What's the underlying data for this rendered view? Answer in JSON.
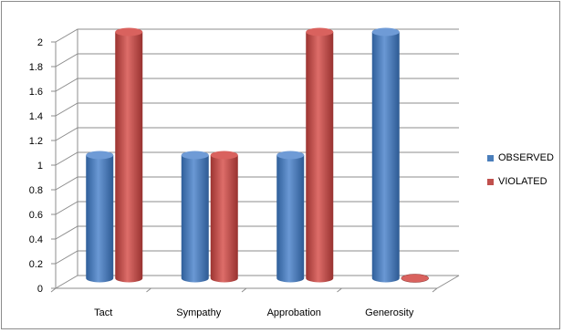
{
  "chart_data": {
    "type": "bar",
    "title": "",
    "xlabel": "",
    "ylabel": "",
    "categories": [
      "Tact",
      "Sympathy",
      "Approbation",
      "Generosity"
    ],
    "series": [
      {
        "name": "OBSERVED",
        "values": [
          1,
          1,
          1,
          2
        ],
        "color": "#4a7ebb"
      },
      {
        "name": "VIOLATED",
        "values": [
          2,
          1,
          2,
          0
        ],
        "color": "#c0504d"
      }
    ],
    "ylim": [
      0,
      2
    ],
    "yticks": [
      "0",
      "0.2",
      "0.4",
      "0.6",
      "0.8",
      "1",
      "1.2",
      "1.4",
      "1.6",
      "1.8",
      "2"
    ],
    "grid": true,
    "legend_position": "right",
    "style": "3d-cylinder"
  }
}
